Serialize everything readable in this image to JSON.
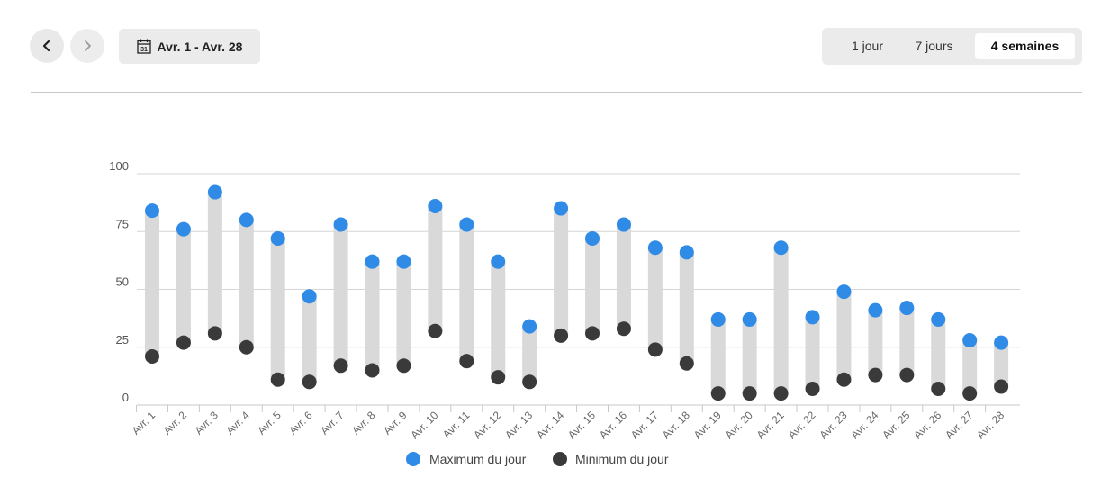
{
  "nav": {
    "prev_icon": "chevron-left-icon",
    "next_icon": "chevron-right-icon",
    "date_range_label": "Avr. 1 - Avr. 28",
    "calendar_icon": "calendar-icon",
    "calendar_day": "31"
  },
  "range_options": [
    {
      "label": "1 jour",
      "active": false
    },
    {
      "label": "7 jours",
      "active": false
    },
    {
      "label": "4 semaines",
      "active": true
    }
  ],
  "colors": {
    "max": "#2f8be6",
    "min": "#3a3a3a",
    "bar": "#d9d9d9",
    "grid": "#d6d6d6"
  },
  "chart_data": {
    "type": "range-bar",
    "categories": [
      "Avr. 1",
      "Avr. 2",
      "Avr. 3",
      "Avr. 4",
      "Avr. 5",
      "Avr. 6",
      "Avr. 7",
      "Avr. 8",
      "Avr. 9",
      "Avr. 10",
      "Avr. 11",
      "Avr. 12",
      "Avr. 13",
      "Avr. 14",
      "Avr. 15",
      "Avr. 16",
      "Avr. 17",
      "Avr. 18",
      "Avr. 19",
      "Avr. 20",
      "Avr. 21",
      "Avr. 22",
      "Avr. 23",
      "Avr. 24",
      "Avr. 25",
      "Avr. 26",
      "Avr. 27",
      "Avr. 28"
    ],
    "series": [
      {
        "name": "Maximum du jour",
        "values": [
          84,
          76,
          92,
          80,
          72,
          47,
          78,
          62,
          62,
          86,
          78,
          62,
          34,
          85,
          72,
          78,
          68,
          66,
          37,
          37,
          68,
          38,
          49,
          41,
          42,
          37,
          28,
          27
        ]
      },
      {
        "name": "Minimum du jour",
        "values": [
          21,
          27,
          31,
          25,
          11,
          10,
          17,
          15,
          17,
          32,
          19,
          12,
          10,
          30,
          31,
          33,
          24,
          18,
          5,
          5,
          5,
          7,
          11,
          13,
          13,
          7,
          5,
          8
        ]
      }
    ],
    "yticks": [
      0,
      25,
      50,
      75,
      100
    ],
    "ylim": [
      0,
      100
    ],
    "grid": true,
    "legend": "bottom-center"
  }
}
